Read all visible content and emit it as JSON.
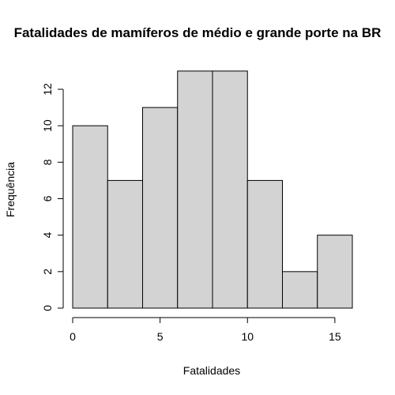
{
  "chart_data": {
    "type": "bar",
    "title": "Fatalidades de mamíferos de médio e grande porte na BR",
    "xlabel": "Fatalidades",
    "ylabel": "Frequência",
    "bins": [
      {
        "x0": 0,
        "x1": 2,
        "count": 10
      },
      {
        "x0": 2,
        "x1": 4,
        "count": 7
      },
      {
        "x0": 4,
        "x1": 6,
        "count": 11
      },
      {
        "x0": 6,
        "x1": 8,
        "count": 13
      },
      {
        "x0": 8,
        "x1": 10,
        "count": 13
      },
      {
        "x0": 10,
        "x1": 12,
        "count": 7
      },
      {
        "x0": 12,
        "x1": 14,
        "count": 2
      },
      {
        "x0": 14,
        "x1": 16,
        "count": 4
      }
    ],
    "xticks": [
      0,
      5,
      10,
      15
    ],
    "yticks": [
      0,
      2,
      4,
      6,
      8,
      10,
      12
    ],
    "xlim": [
      0,
      16
    ],
    "ylim": [
      0,
      13
    ],
    "grid": false
  }
}
